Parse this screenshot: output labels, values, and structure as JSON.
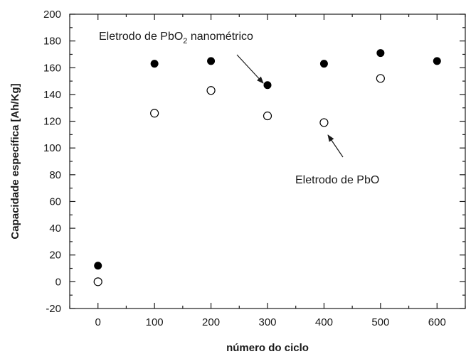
{
  "chart_data": {
    "type": "scatter",
    "xlabel": "número do ciclo",
    "ylabel": "Capacidade específica [Ah/Kg]",
    "xlim": [
      -50,
      650
    ],
    "ylim": [
      -20,
      200
    ],
    "xticks": [
      0,
      100,
      200,
      300,
      400,
      500,
      600
    ],
    "yticks": [
      -20,
      0,
      20,
      40,
      60,
      80,
      100,
      120,
      140,
      160,
      180,
      200
    ],
    "grid": false,
    "series": [
      {
        "marker": "filled-circle",
        "color": "#000000",
        "x": [
          0,
          100,
          200,
          300,
          400,
          500,
          600
        ],
        "y": [
          12,
          163,
          165,
          147,
          163,
          171,
          165
        ]
      },
      {
        "marker": "open-circle",
        "color": "#000000",
        "x": [
          0,
          100,
          200,
          300,
          400,
          500
        ],
        "y": [
          0,
          126,
          143,
          124,
          119,
          152
        ]
      }
    ],
    "annotations": [
      {
        "text": "Eletrodo de PbO",
        "subscript": "2",
        "suffix": " nanométrico",
        "points_to": {
          "x": 300,
          "y": 147
        }
      },
      {
        "text": "Eletrodo de PbO",
        "subscript": "",
        "suffix": "",
        "points_to": {
          "x": 400,
          "y": 119
        }
      }
    ]
  }
}
